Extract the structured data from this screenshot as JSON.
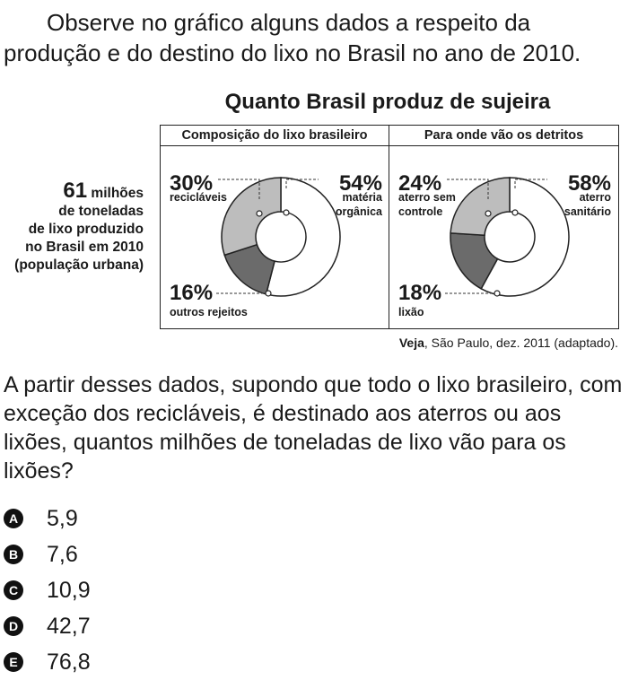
{
  "intro": "Observe no gráfico alguns dados a respeito da produção e do destino do lixo no Brasil no ano de 2010.",
  "figure_title": "Quanto Brasil produz de sujeira",
  "side_note": {
    "number": "61",
    "unit": "milhões",
    "lines": [
      "de toneladas",
      "de lixo produzido",
      "no Brasil em 2010",
      "(população urbana)"
    ]
  },
  "source": {
    "bold": "Veja",
    "rest": ", São Paulo, dez. 2011 (adaptado)."
  },
  "question": "A partir desses dados, supondo que todo o lixo brasileiro, com exceção dos recicláveis, é destinado aos aterros ou aos lixões, quantos milhões de toneladas de lixo vão para os lixões?",
  "options": [
    {
      "letter": "A",
      "text": "5,9"
    },
    {
      "letter": "B",
      "text": "7,6"
    },
    {
      "letter": "C",
      "text": "10,9"
    },
    {
      "letter": "D",
      "text": "42,7"
    },
    {
      "letter": "E",
      "text": "76,8"
    }
  ],
  "colors": {
    "light": "#ffffff",
    "mid": "#bdbdbd",
    "dark": "#6b6b6b",
    "stroke": "#222222"
  },
  "chart_data": [
    {
      "type": "pie",
      "title": "Composição do lixo brasileiro",
      "slices": [
        {
          "label": "matéria orgânica",
          "value": 54,
          "pct": "54%",
          "color": "#ffffff"
        },
        {
          "label": "outros rejeitos",
          "value": 16,
          "pct": "16%",
          "color": "#6b6b6b"
        },
        {
          "label": "recicláveis",
          "value": 30,
          "pct": "30%",
          "color": "#bdbdbd"
        }
      ]
    },
    {
      "type": "pie",
      "title": "Para onde vão os detritos",
      "slices": [
        {
          "label": "aterro sanitário",
          "value": 58,
          "pct": "58%",
          "color": "#ffffff"
        },
        {
          "label": "lixão",
          "value": 18,
          "pct": "18%",
          "color": "#6b6b6b"
        },
        {
          "label": "aterro sem controle",
          "value": 24,
          "pct": "24%",
          "color": "#bdbdbd"
        }
      ]
    }
  ]
}
